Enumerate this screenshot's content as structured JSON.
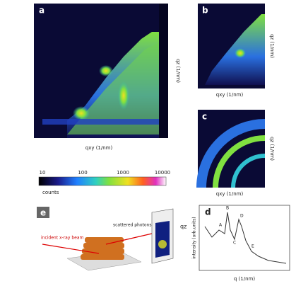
{
  "panels": {
    "a": {
      "label": "a",
      "x_label": "qxy (1/nm)",
      "y_label": "qz (1/nm)"
    },
    "b": {
      "label": "b",
      "x_label": "qxy (1/nm)",
      "y_label": "qz (1/nm)"
    },
    "c": {
      "label": "c",
      "x_label": "qxy (1/nm)",
      "y_label": "qz (1/nm)"
    },
    "colorbar": {
      "label": "counts",
      "ticks": [
        "10",
        "100",
        "1000",
        "10000"
      ]
    },
    "d": {
      "label": "d",
      "x_label": "q (1/nm)",
      "y_label": "intensity (arb.units)",
      "peaks": [
        "A",
        "B",
        "C",
        "D",
        "E"
      ]
    },
    "e": {
      "label": "e",
      "beam": "incident x-ray beam",
      "scattered": "scattered photons",
      "detector_axis": "qz"
    }
  }
}
